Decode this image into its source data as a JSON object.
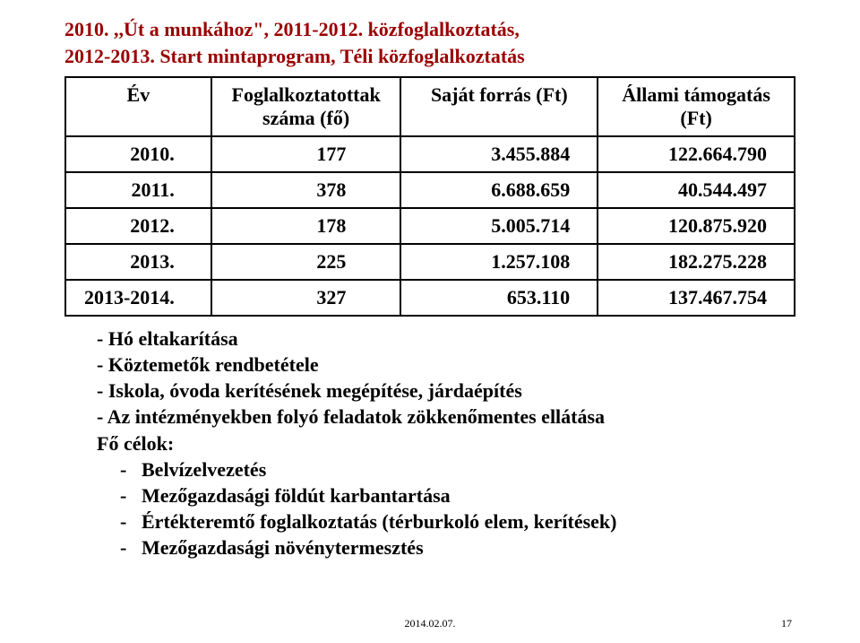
{
  "title_line1": "2010. ,,Út a munkához\", 2011-2012. közfoglalkoztatás,",
  "title_line2": "2012-2013. Start mintaprogram, Téli közfoglalkoztatás",
  "table": {
    "headers": {
      "ev": "Év",
      "fo": "Foglalkoztatottak száma (fő)",
      "sf": "Saját forrás (Ft)",
      "at": "Állami támogatás (Ft)"
    },
    "rows": [
      {
        "ev": "2010.",
        "fo": "177",
        "sf": "3.455.884",
        "at": "122.664.790"
      },
      {
        "ev": "2011.",
        "fo": "378",
        "sf": "6.688.659",
        "at": "40.544.497"
      },
      {
        "ev": "2012.",
        "fo": "178",
        "sf": "5.005.714",
        "at": "120.875.920"
      },
      {
        "ev": "2013.",
        "fo": "225",
        "sf": "1.257.108",
        "at": "182.275.228"
      },
      {
        "ev": "2013-2014.",
        "fo": "327",
        "sf": "653.110",
        "at": "137.467.754"
      }
    ]
  },
  "bullets": {
    "b1": "- Hó eltakarítása",
    "b2": "- Köztemetők rendbetétele",
    "b3": "- Iskola, óvoda kerítésének megépítése, járdaépítés",
    "b4": "- Az intézményekben folyó feladatok zökkenőmentes ellátása",
    "heading": "Fő célok:",
    "s1": "Belvízelvezetés",
    "s2": "Mezőgazdasági földút karbantartása",
    "s3": "Értékteremtő foglalkoztatás (térburkoló elem, kerítések)",
    "s4": "Mezőgazdasági növénytermesztés"
  },
  "footer": {
    "date": "2014.02.07.",
    "page": "17"
  }
}
